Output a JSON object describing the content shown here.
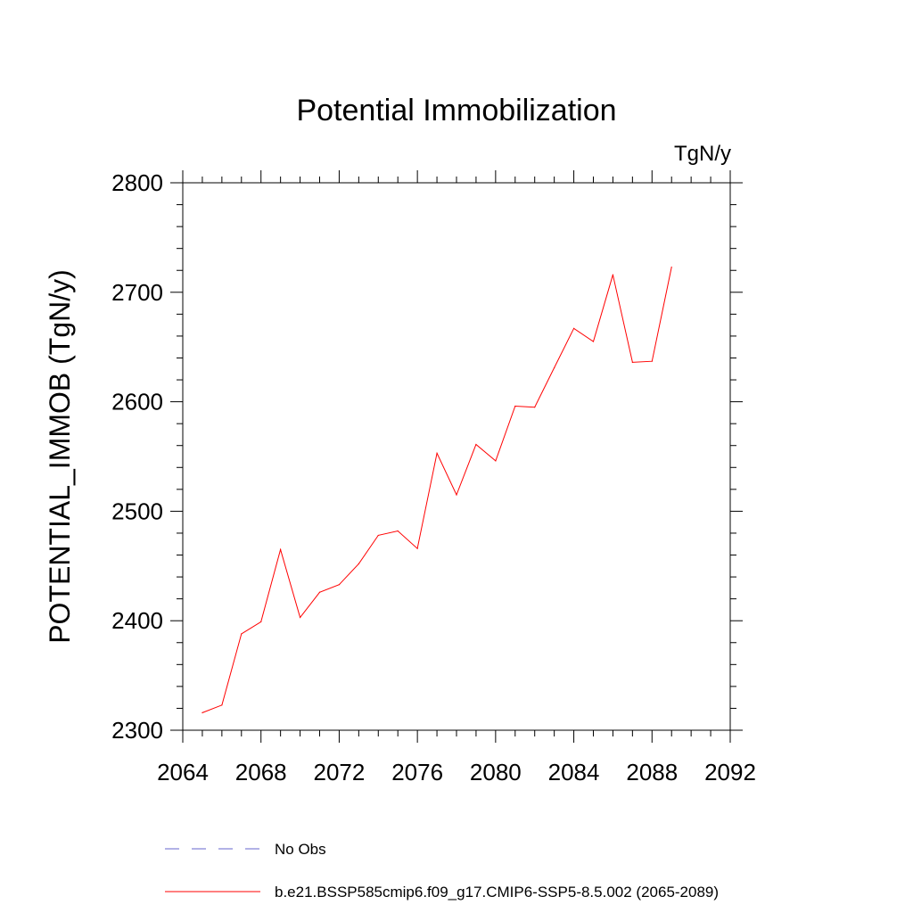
{
  "chart_data": {
    "type": "line",
    "title": "Potential Immobilization",
    "units_label": "TgN/y",
    "ylabel": "POTENTIAL_IMMOB  (TgN/y)",
    "xlabel": "",
    "xlim": [
      2064,
      2092
    ],
    "ylim": [
      2300,
      2800
    ],
    "x_ticks": [
      2064,
      2068,
      2072,
      2076,
      2080,
      2084,
      2088,
      2092
    ],
    "x_tick_labels": [
      "2064",
      "2068",
      "2072",
      "2076",
      "2080",
      "2084",
      "2088",
      "2092"
    ],
    "y_ticks": [
      2300,
      2400,
      2500,
      2600,
      2700,
      2800
    ],
    "y_tick_labels": [
      "2300",
      "2400",
      "2500",
      "2600",
      "2700",
      "2800"
    ],
    "grid": false,
    "legend_placement": "bottom",
    "series": [
      {
        "name": "No Obs",
        "color": "#6666cc",
        "dash": "dashed",
        "x": [],
        "y": []
      },
      {
        "name": "b.e21.BSSP585cmip6.f09_g17.CMIP6-SSP5-8.5.002 (2065-2089)",
        "color": "#ff0000",
        "dash": "solid",
        "x": [
          2065,
          2066,
          2067,
          2068,
          2069,
          2070,
          2071,
          2072,
          2073,
          2074,
          2075,
          2076,
          2077,
          2078,
          2079,
          2080,
          2081,
          2082,
          2083,
          2084,
          2085,
          2086,
          2087,
          2088,
          2089
        ],
        "y": [
          2316,
          2323,
          2388,
          2399,
          2465,
          2403,
          2426,
          2433,
          2452,
          2478,
          2482,
          2466,
          2553,
          2515,
          2561,
          2546,
          2596,
          2595,
          2631,
          2667,
          2655,
          2716,
          2636,
          2637,
          2723
        ]
      }
    ]
  }
}
